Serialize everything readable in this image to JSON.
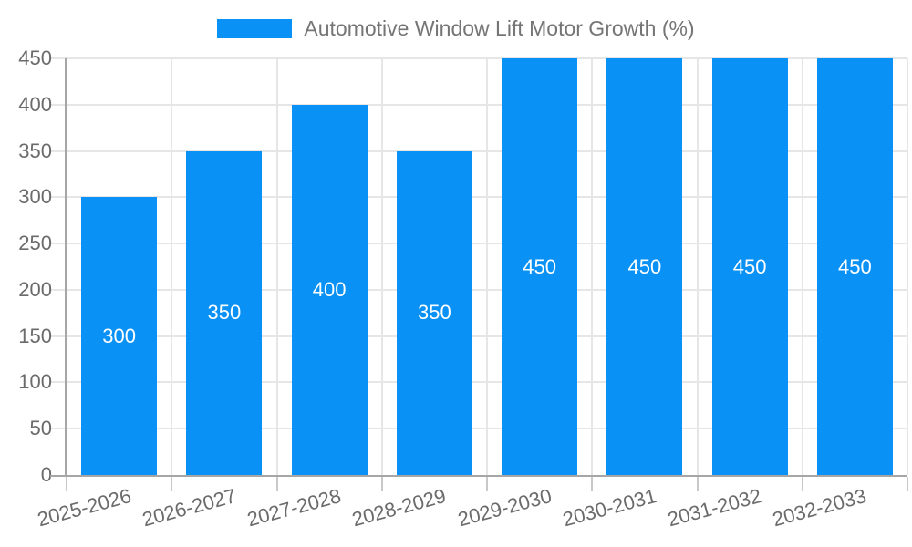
{
  "legend": {
    "label": "Automotive Window Lift Motor Growth (%)"
  },
  "chart_data": {
    "type": "bar",
    "title": "Automotive Window Lift Motor Growth (%)",
    "categories": [
      "2025-2026",
      "2026-2027",
      "2027-2028",
      "2028-2029",
      "2029-2030",
      "2030-2031",
      "2031-2032",
      "2032-2033"
    ],
    "values": [
      300,
      350,
      400,
      350,
      450,
      450,
      450,
      450
    ],
    "value_labels": [
      "300",
      "350",
      "400",
      "350",
      "450",
      "450",
      "450",
      "450"
    ],
    "xlabel": "",
    "ylabel": "",
    "ylim": [
      0,
      450
    ],
    "ytick_step": 50,
    "yticks": [
      "0",
      "50",
      "100",
      "150",
      "200",
      "250",
      "300",
      "350",
      "400",
      "450"
    ],
    "grid": true,
    "legend_position": "top-center",
    "colors": {
      "bar": "#0991f5",
      "value_label": "#ffffff",
      "axis_line": "#a6a6a6",
      "grid_line": "#e6e6e6",
      "tick_line": "#c9c9c9",
      "axis_text": "#6b6b6b",
      "title_text": "#757575",
      "background": "#ffffff"
    }
  }
}
